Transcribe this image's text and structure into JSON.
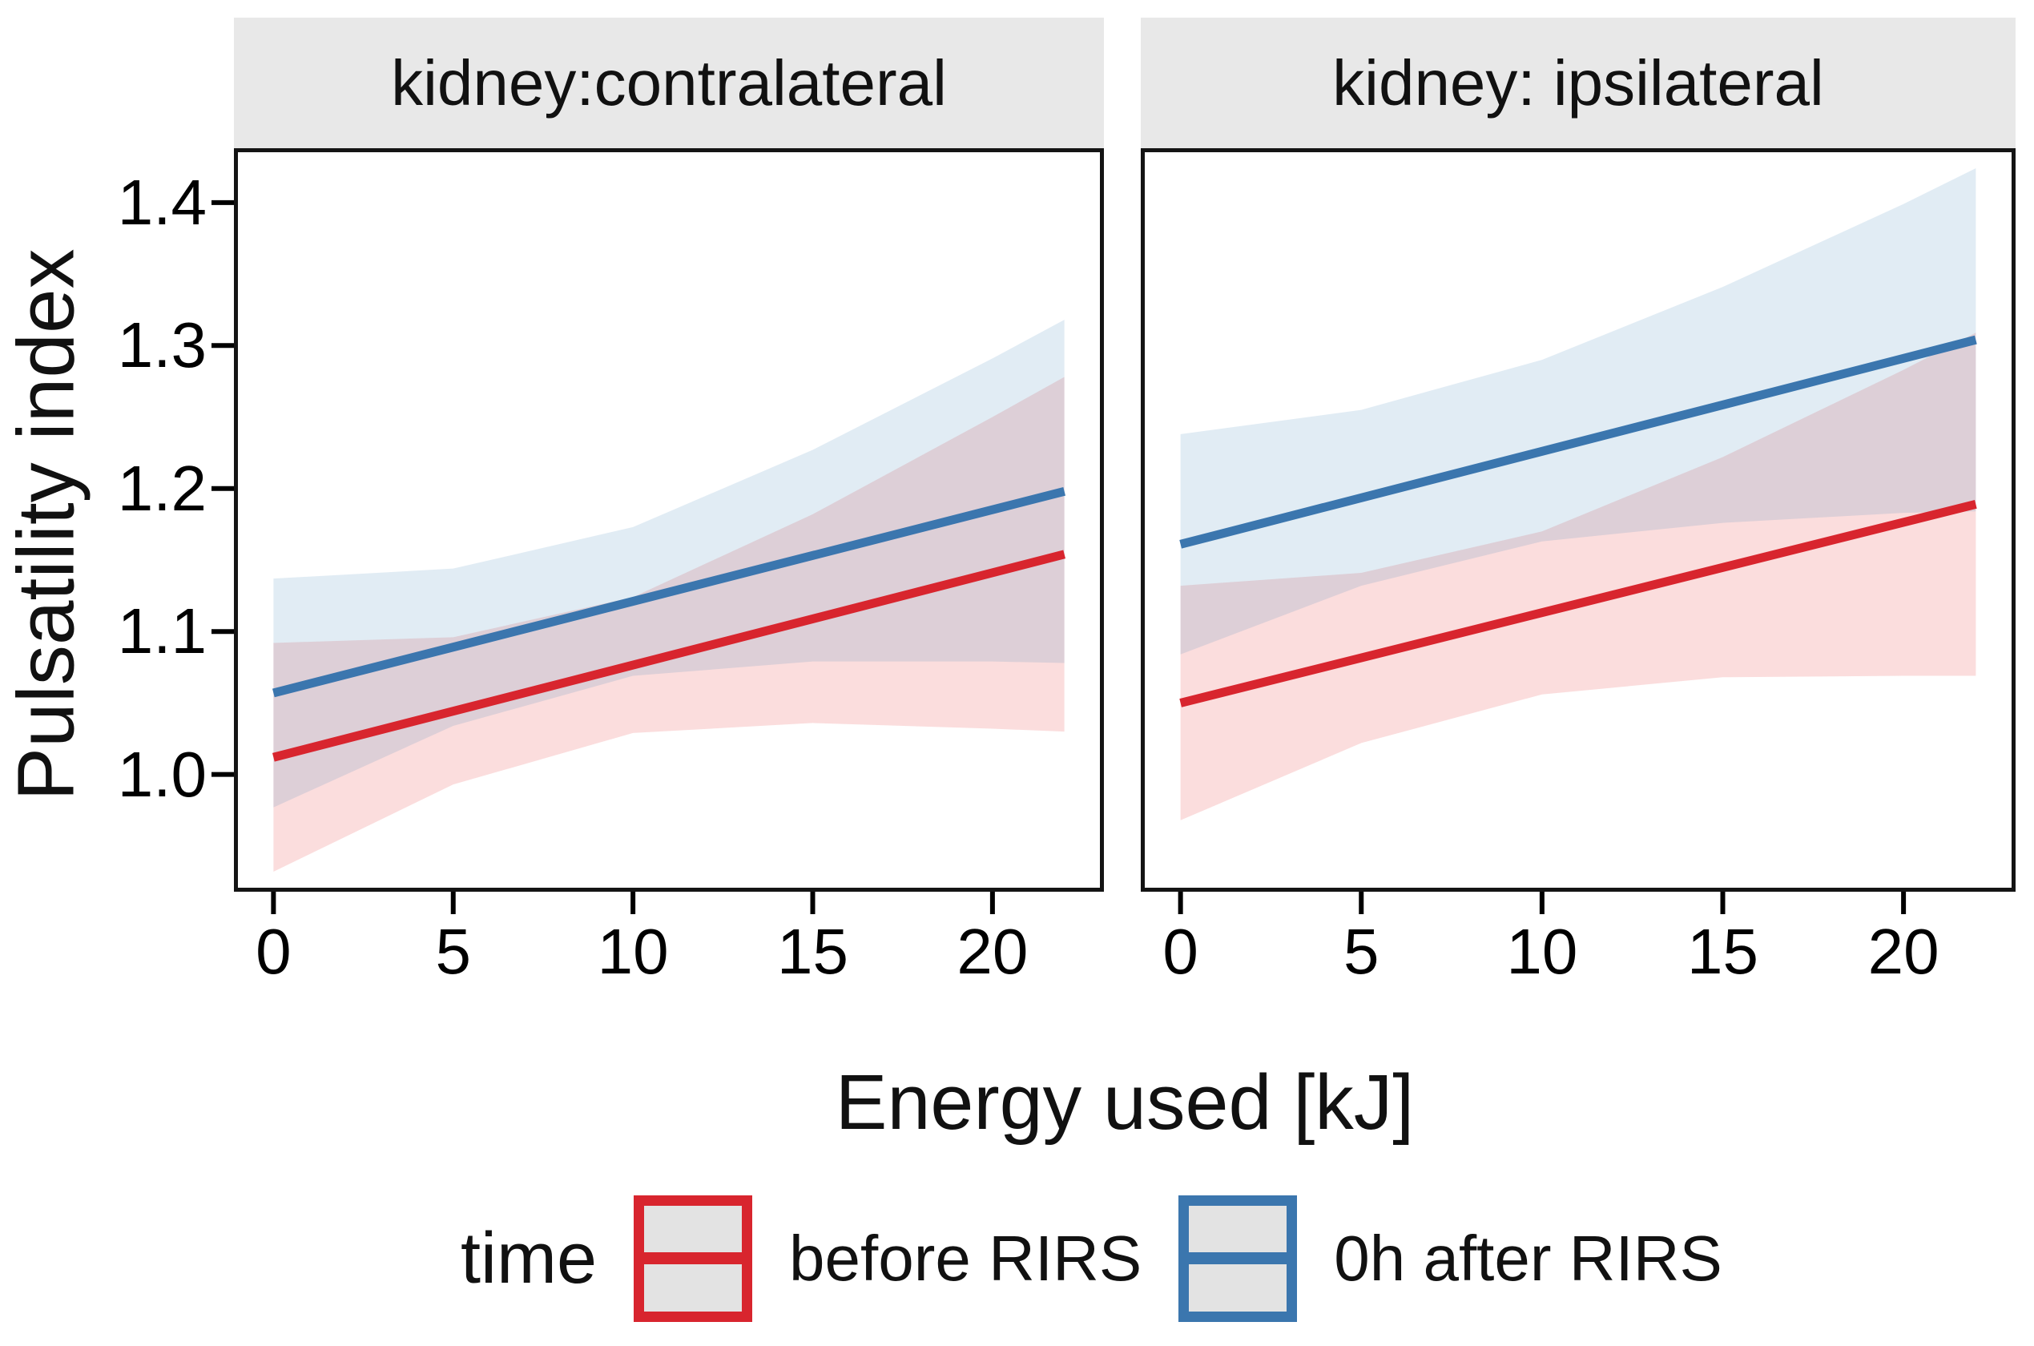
{
  "figure": {
    "background": "#ffffff"
  },
  "chart_data": {
    "type": "line",
    "description": "Faceted linear-fit plot with confidence ribbons",
    "x_label": "Energy used [kJ]",
    "y_label": "Pulsatility index",
    "x_range": [
      -1.1,
      23.1
    ],
    "y_range": [
      0.918,
      1.438
    ],
    "x_ticks": [
      {
        "label": "0",
        "value": 0
      },
      {
        "label": "5",
        "value": 5
      },
      {
        "label": "10",
        "value": 10
      },
      {
        "label": "15",
        "value": 15
      },
      {
        "label": "20",
        "value": 20
      }
    ],
    "y_ticks": [
      {
        "label": "1.0",
        "value": 1.0
      },
      {
        "label": "1.1",
        "value": 1.1
      },
      {
        "label": "1.2",
        "value": 1.2
      },
      {
        "label": "1.3",
        "value": 1.3
      },
      {
        "label": "1.4",
        "value": 1.4
      }
    ],
    "colors": {
      "before_line": "#d8252e",
      "after_line": "#3b76ae",
      "before_ribbon": "#e41a1c",
      "after_ribbon": "#377eb8",
      "ribbon_alpha": 0.15,
      "strip_background": "#e8e8e8",
      "panel_border": "#141414",
      "legend_key_background": "#e3e3e3"
    },
    "panels": [
      {
        "title": "kidney:contralateral",
        "series": [
          {
            "name": "before RIRS",
            "x": [
              0,
              22
            ],
            "y": [
              1.012,
              1.154
            ],
            "ribbon": {
              "x": [
                0,
                5,
                10,
                15,
                20,
                22
              ],
              "lo": [
                0.932,
                0.993,
                1.029,
                1.036,
                1.032,
                1.03
              ],
              "hi": [
                1.092,
                1.096,
                1.124,
                1.182,
                1.25,
                1.278
              ]
            }
          },
          {
            "name": "0h after RIRS",
            "x": [
              0,
              22
            ],
            "y": [
              1.057,
              1.198
            ],
            "ribbon": {
              "x": [
                0,
                5,
                10,
                15,
                20,
                22
              ],
              "lo": [
                0.977,
                1.034,
                1.069,
                1.079,
                1.079,
                1.078
              ],
              "hi": [
                1.137,
                1.144,
                1.173,
                1.227,
                1.291,
                1.318
              ]
            }
          }
        ]
      },
      {
        "title": "kidney: ipsilateral",
        "series": [
          {
            "name": "before RIRS",
            "x": [
              0,
              22
            ],
            "y": [
              1.05,
              1.189
            ],
            "ribbon": {
              "x": [
                0,
                5,
                10,
                15,
                20,
                22
              ],
              "lo": [
                0.968,
                1.022,
                1.056,
                1.068,
                1.069,
                1.069
              ],
              "hi": [
                1.132,
                1.141,
                1.17,
                1.222,
                1.283,
                1.309
              ]
            }
          },
          {
            "name": "0h after RIRS",
            "x": [
              0,
              22
            ],
            "y": [
              1.161,
              1.304
            ],
            "ribbon": {
              "x": [
                0,
                5,
                10,
                15,
                20,
                22
              ],
              "lo": [
                1.084,
                1.132,
                1.163,
                1.176,
                1.183,
                1.184
              ],
              "hi": [
                1.238,
                1.255,
                1.29,
                1.341,
                1.399,
                1.424
              ]
            }
          }
        ]
      }
    ],
    "legend": {
      "title": "time",
      "entries": [
        {
          "label": "before RIRS",
          "color": "#d8252e"
        },
        {
          "label": "0h after RIRS",
          "color": "#3b76ae"
        }
      ]
    }
  }
}
